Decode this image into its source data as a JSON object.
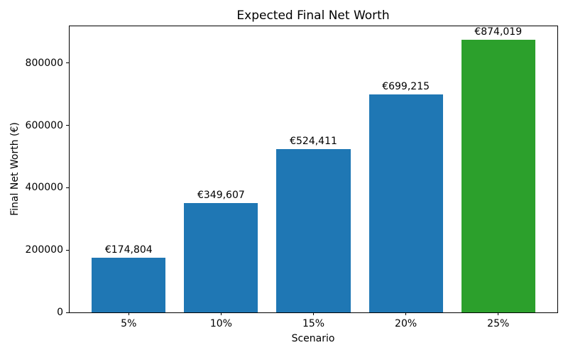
{
  "chart_data": {
    "type": "bar",
    "title": "Expected Final Net Worth",
    "xlabel": "Scenario",
    "ylabel": "Final Net Worth (€)",
    "categories": [
      "5%",
      "10%",
      "15%",
      "20%",
      "25%"
    ],
    "values": [
      174804,
      349607,
      524411,
      699215,
      874019
    ],
    "bar_labels": [
      "€174,804",
      "€349,607",
      "€524,411",
      "€699,215",
      "€874,019"
    ],
    "bar_colors": [
      "#1f77b4",
      "#1f77b4",
      "#1f77b4",
      "#1f77b4",
      "#2ca02c"
    ],
    "yticks": [
      {
        "value": 0,
        "label": "0"
      },
      {
        "value": 200000,
        "label": "200000"
      },
      {
        "value": 400000,
        "label": "400000"
      },
      {
        "value": 600000,
        "label": "600000"
      },
      {
        "value": 800000,
        "label": "800000"
      }
    ],
    "ylim": [
      0,
      917720
    ],
    "grid": false,
    "legend": null,
    "bar_width_fraction": 0.8,
    "x_edge_margin_units": 0.64,
    "background_color": "#ffffff",
    "spine_color": "#000000",
    "text_color": "#000000"
  }
}
